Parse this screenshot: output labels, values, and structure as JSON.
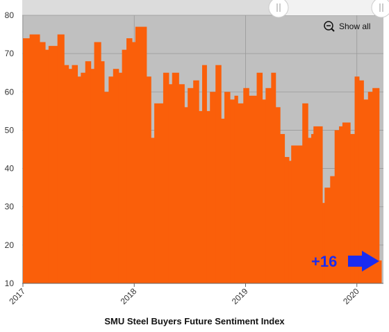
{
  "chart_data": {
    "type": "step-area",
    "title": "SMU Steel Buyers Future Sentiment Index",
    "annotation": "+16",
    "button": "Show all",
    "color": "#fa5f0a",
    "grid": true,
    "x": [
      2017.0,
      2017.06,
      2017.15,
      2017.2,
      2017.23,
      2017.31,
      2017.37,
      2017.41,
      2017.44,
      2017.49,
      2017.52,
      2017.56,
      2017.61,
      2017.64,
      2017.7,
      2017.73,
      2017.77,
      2017.81,
      2017.86,
      2017.89,
      2017.93,
      2017.98,
      2018.01,
      2018.11,
      2018.15,
      2018.18,
      2018.26,
      2018.31,
      2018.34,
      2018.4,
      2018.45,
      2018.48,
      2018.53,
      2018.58,
      2018.61,
      2018.65,
      2018.68,
      2018.73,
      2018.78,
      2018.81,
      2018.86,
      2018.9,
      2018.93,
      2018.98,
      2019.03,
      2019.1,
      2019.15,
      2019.18,
      2019.23,
      2019.27,
      2019.31,
      2019.35,
      2019.39,
      2019.41,
      2019.51,
      2019.56,
      2019.59,
      2019.61,
      2019.69,
      2019.71,
      2019.76,
      2019.8,
      2019.84,
      2019.87,
      2019.94,
      2019.98,
      2020.02,
      2020.06,
      2020.1,
      2020.14,
      2020.2
    ],
    "values": [
      74,
      75,
      73,
      71,
      72,
      75,
      67,
      66,
      67,
      64,
      65,
      68,
      66,
      73,
      68,
      60,
      64,
      66,
      65,
      71,
      74,
      73,
      77,
      64,
      48,
      57,
      65,
      62,
      65,
      62,
      56,
      61,
      63,
      55,
      67,
      55,
      60,
      67,
      53,
      60,
      58,
      59,
      57,
      61,
      59,
      65,
      58,
      61,
      65,
      56,
      49,
      43,
      42,
      46,
      57,
      48,
      49,
      51,
      31,
      35,
      38,
      50,
      51,
      52,
      49,
      64,
      63,
      58,
      60,
      61,
      16
    ],
    "xlim": [
      2017,
      2020.22
    ],
    "xticks": [
      2017,
      2018,
      2019,
      2020
    ],
    "ylim": [
      10,
      80
    ],
    "yticks": [
      10,
      20,
      30,
      40,
      50,
      60,
      70,
      80
    ]
  }
}
